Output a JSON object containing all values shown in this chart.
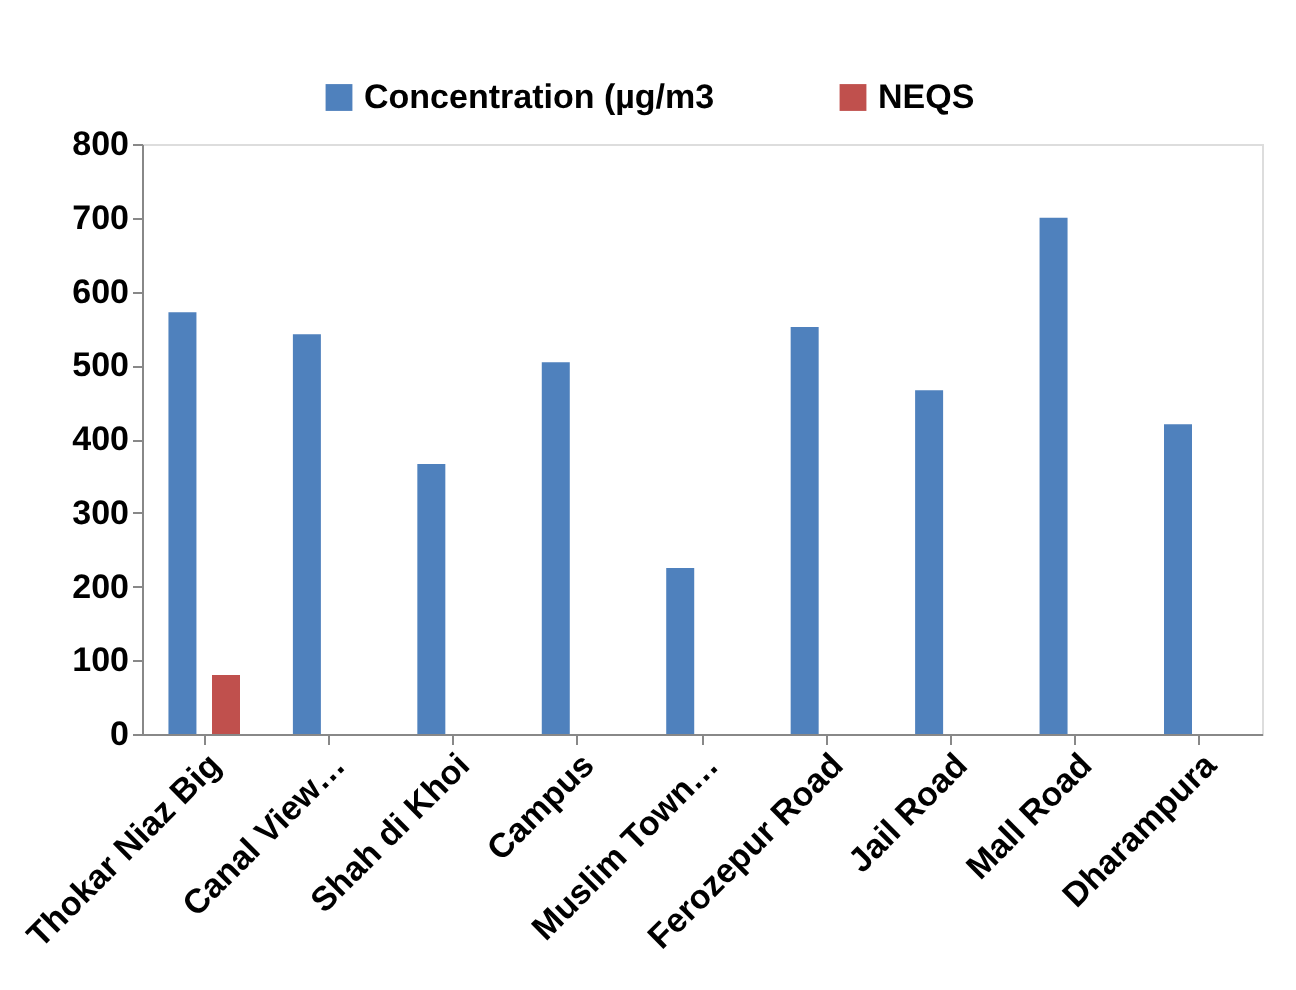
{
  "chart_data": {
    "type": "bar",
    "categories": [
      "Thokar Niaz Big",
      "Canal View…",
      "Shah di Khoi",
      "Campus",
      "Muslim Town…",
      "Ferozepur Road",
      "Jail Road",
      "Mall Road",
      "Dharampura"
    ],
    "series": [
      {
        "name": "Concentration (µg/m3",
        "color": "#4f81bd",
        "values": [
          572,
          542,
          366,
          504,
          225,
          552,
          466,
          700,
          420
        ]
      },
      {
        "name": "NEQS",
        "color": "#c0504d",
        "values": [
          80,
          null,
          null,
          null,
          null,
          null,
          null,
          null,
          null
        ]
      }
    ],
    "ylim": [
      0,
      800
    ],
    "yticks": [
      0,
      100,
      200,
      300,
      400,
      500,
      600,
      700,
      800
    ],
    "grid": false,
    "legend": "top"
  }
}
